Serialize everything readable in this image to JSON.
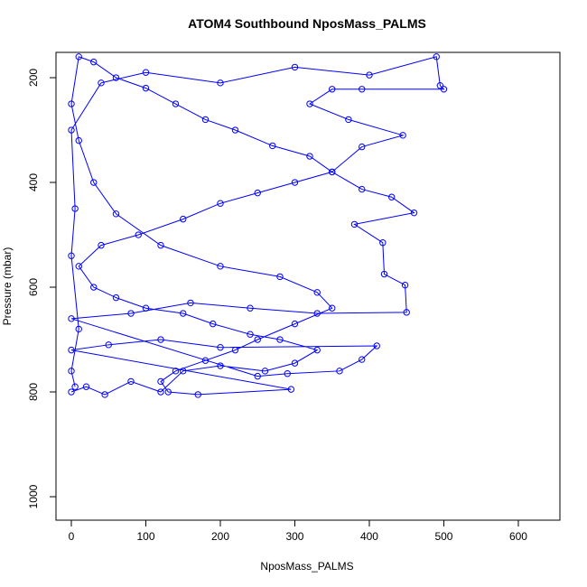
{
  "chart_data": {
    "type": "line",
    "title": "ATOM4 Southbound NposMass_PALMS",
    "x_label": "NposMass_PALMS",
    "y_label": "Pressure (mbar)",
    "xlim": [
      -20.6,
      655.8
    ],
    "ylim": [
      1044.8,
      151.7
    ],
    "y_reversed": true,
    "xticks": [
      0,
      100,
      200,
      300,
      400,
      500,
      600
    ],
    "yticks": [
      200,
      400,
      600,
      800,
      1000
    ],
    "x": [
      0,
      20,
      45,
      80,
      120,
      150,
      200,
      260,
      300,
      330,
      280,
      240,
      190,
      150,
      100,
      60,
      30,
      10,
      40,
      90,
      150,
      200,
      250,
      300,
      350,
      320,
      270,
      220,
      180,
      140,
      100,
      60,
      30,
      10,
      0,
      10,
      30,
      60,
      120,
      200,
      280,
      330,
      350,
      300,
      250,
      220,
      180,
      140,
      120,
      130,
      170,
      295,
      0,
      50,
      120,
      200,
      410,
      390,
      360,
      290,
      250,
      0,
      80,
      160,
      240,
      330,
      450,
      448,
      420,
      418,
      380,
      460,
      430,
      390,
      350,
      390,
      445,
      372,
      320,
      350,
      390,
      500,
      495,
      490,
      400,
      300,
      200,
      100,
      40,
      0,
      5,
      0,
      10,
      0,
      5
    ],
    "series": [
      {
        "name": "NposMass_PALMS",
        "color": "#0000ff",
        "marker": "open-circle",
        "values": [
          800,
          790,
          805,
          780,
          800,
          760,
          750,
          760,
          745,
          720,
          700,
          690,
          670,
          650,
          640,
          620,
          600,
          560,
          520,
          500,
          470,
          440,
          420,
          400,
          380,
          350,
          330,
          300,
          280,
          250,
          220,
          200,
          170,
          160,
          250,
          320,
          400,
          460,
          520,
          560,
          580,
          610,
          640,
          670,
          700,
          720,
          740,
          760,
          780,
          800,
          805,
          795,
          720,
          710,
          700,
          715,
          712,
          738,
          760,
          765,
          770,
          660,
          650,
          630,
          640,
          650,
          648,
          596,
          575,
          515,
          480,
          458,
          428,
          413,
          380,
          332,
          310,
          280,
          250,
          222,
          222,
          222,
          215,
          160,
          195,
          180,
          210,
          190,
          210,
          300,
          450,
          540,
          680,
          760,
          790
        ]
      }
    ]
  }
}
